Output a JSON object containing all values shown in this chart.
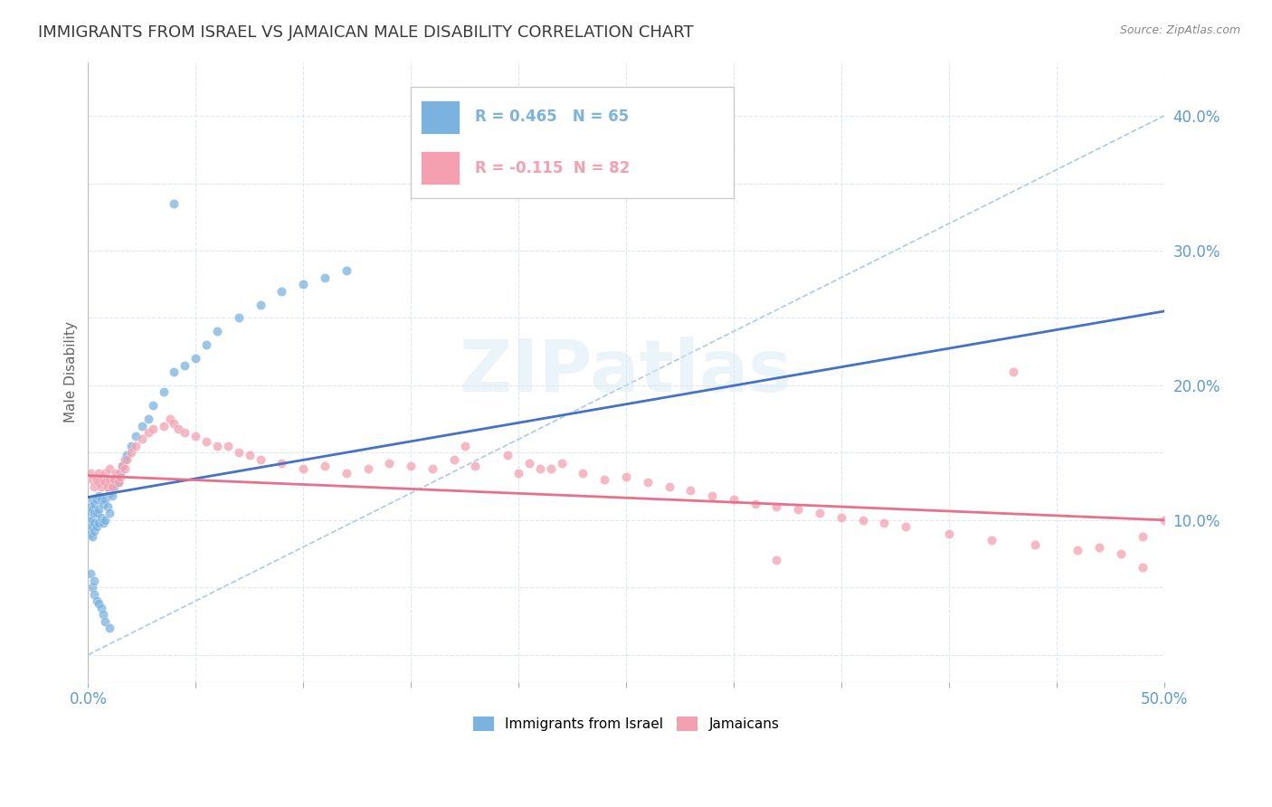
{
  "title": "IMMIGRANTS FROM ISRAEL VS JAMAICAN MALE DISABILITY CORRELATION CHART",
  "source_text": "Source: ZipAtlas.com",
  "ylabel": "Male Disability",
  "xlim": [
    0.0,
    0.5
  ],
  "ylim": [
    -0.02,
    0.44
  ],
  "xticks": [
    0.0,
    0.05,
    0.1,
    0.15,
    0.2,
    0.25,
    0.3,
    0.35,
    0.4,
    0.45,
    0.5
  ],
  "yticks": [
    0.0,
    0.05,
    0.1,
    0.15,
    0.2,
    0.25,
    0.3,
    0.35,
    0.4
  ],
  "title_color": "#3a3a3a",
  "title_fontsize": 13,
  "tick_color": "#5b9bd5",
  "grid_color": "#dce9f5",
  "background_color": "#ffffff",
  "series1_color": "#7ab3e0",
  "series2_color": "#f4a0b0",
  "series1_line_color": "#4472c4",
  "series2_line_color": "#e8708a",
  "series1_label": "Immigrants from Israel",
  "series2_label": "Jamaicans",
  "series1_R": 0.465,
  "series1_N": 65,
  "series2_R": -0.115,
  "series2_N": 82,
  "diag_color": "#b0c8e0",
  "israel_x": [
    0.001,
    0.001,
    0.001,
    0.001,
    0.001,
    0.002,
    0.002,
    0.002,
    0.002,
    0.002,
    0.003,
    0.003,
    0.003,
    0.003,
    0.004,
    0.004,
    0.004,
    0.005,
    0.005,
    0.005,
    0.006,
    0.006,
    0.007,
    0.007,
    0.008,
    0.008,
    0.009,
    0.01,
    0.01,
    0.011,
    0.012,
    0.013,
    0.014,
    0.015,
    0.016,
    0.017,
    0.018,
    0.02,
    0.022,
    0.025,
    0.028,
    0.03,
    0.035,
    0.04,
    0.045,
    0.05,
    0.055,
    0.06,
    0.07,
    0.08,
    0.09,
    0.1,
    0.11,
    0.12,
    0.001,
    0.002,
    0.003,
    0.003,
    0.004,
    0.005,
    0.006,
    0.007,
    0.008,
    0.01,
    0.04
  ],
  "israel_y": [
    0.11,
    0.105,
    0.1,
    0.095,
    0.09,
    0.115,
    0.108,
    0.1,
    0.095,
    0.088,
    0.112,
    0.105,
    0.098,
    0.092,
    0.115,
    0.105,
    0.095,
    0.118,
    0.108,
    0.098,
    0.115,
    0.102,
    0.112,
    0.098,
    0.115,
    0.1,
    0.11,
    0.12,
    0.105,
    0.118,
    0.125,
    0.13,
    0.128,
    0.135,
    0.14,
    0.145,
    0.148,
    0.155,
    0.162,
    0.17,
    0.175,
    0.185,
    0.195,
    0.21,
    0.215,
    0.22,
    0.23,
    0.24,
    0.25,
    0.26,
    0.27,
    0.275,
    0.28,
    0.285,
    0.06,
    0.05,
    0.045,
    0.055,
    0.04,
    0.038,
    0.035,
    0.03,
    0.025,
    0.02,
    0.335
  ],
  "jamaica_x": [
    0.001,
    0.002,
    0.003,
    0.004,
    0.005,
    0.005,
    0.006,
    0.007,
    0.008,
    0.008,
    0.009,
    0.01,
    0.01,
    0.011,
    0.012,
    0.013,
    0.014,
    0.015,
    0.016,
    0.017,
    0.018,
    0.02,
    0.022,
    0.025,
    0.028,
    0.03,
    0.035,
    0.038,
    0.04,
    0.042,
    0.045,
    0.05,
    0.055,
    0.06,
    0.065,
    0.07,
    0.075,
    0.08,
    0.09,
    0.1,
    0.11,
    0.12,
    0.13,
    0.14,
    0.15,
    0.16,
    0.17,
    0.18,
    0.2,
    0.21,
    0.22,
    0.23,
    0.24,
    0.25,
    0.26,
    0.27,
    0.28,
    0.29,
    0.3,
    0.31,
    0.32,
    0.33,
    0.34,
    0.35,
    0.36,
    0.37,
    0.38,
    0.4,
    0.42,
    0.44,
    0.46,
    0.48,
    0.49,
    0.5,
    0.175,
    0.195,
    0.205,
    0.215,
    0.32,
    0.43,
    0.47,
    0.49
  ],
  "jamaica_y": [
    0.135,
    0.13,
    0.125,
    0.13,
    0.128,
    0.135,
    0.125,
    0.13,
    0.128,
    0.135,
    0.125,
    0.13,
    0.138,
    0.125,
    0.13,
    0.135,
    0.128,
    0.132,
    0.14,
    0.138,
    0.145,
    0.15,
    0.155,
    0.16,
    0.165,
    0.168,
    0.17,
    0.175,
    0.172,
    0.168,
    0.165,
    0.162,
    0.158,
    0.155,
    0.155,
    0.15,
    0.148,
    0.145,
    0.142,
    0.138,
    0.14,
    0.135,
    0.138,
    0.142,
    0.14,
    0.138,
    0.145,
    0.14,
    0.135,
    0.138,
    0.142,
    0.135,
    0.13,
    0.132,
    0.128,
    0.125,
    0.122,
    0.118,
    0.115,
    0.112,
    0.11,
    0.108,
    0.105,
    0.102,
    0.1,
    0.098,
    0.095,
    0.09,
    0.085,
    0.082,
    0.078,
    0.075,
    0.088,
    0.1,
    0.155,
    0.148,
    0.142,
    0.138,
    0.07,
    0.21,
    0.08,
    0.065
  ]
}
